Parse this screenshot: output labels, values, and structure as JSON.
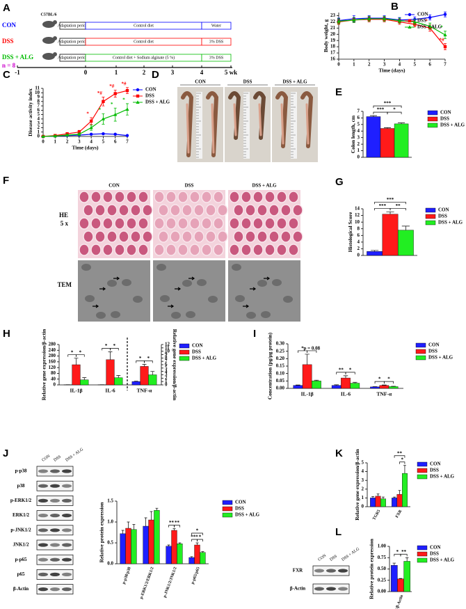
{
  "panel_labels": [
    "A",
    "B",
    "C",
    "D",
    "E",
    "F",
    "G",
    "H",
    "I",
    "J",
    "K",
    "L"
  ],
  "design": {
    "strain": "C57BL/6",
    "n": "n = 8",
    "n_color": "#cc00cc",
    "groups": [
      {
        "name": "CON",
        "color": "#0000ff",
        "periods": [
          "Adaptation period",
          "Control diet",
          "Water"
        ]
      },
      {
        "name": "DSS",
        "color": "#ff0000",
        "periods": [
          "Adaptation period",
          "Control diet",
          "3% DSS"
        ]
      },
      {
        "name": "DSS + ALG",
        "color": "#00bb00",
        "periods": [
          "Adaptation period",
          "Control diet + Sodium alginate (5 %)",
          "3% DSS"
        ]
      }
    ],
    "timeline": [
      "-1",
      "0",
      "1",
      "2",
      "3",
      "4",
      "5 wk"
    ]
  },
  "colon_photo": {
    "groups": [
      "CON",
      "DSS",
      "DSS + ALG"
    ]
  },
  "histology": {
    "groups": [
      "CON",
      "DSS",
      "DSS + ALG"
    ],
    "rows": [
      {
        "label": "HE",
        "sub": "5 x"
      },
      {
        "label": "TEM"
      }
    ]
  },
  "western_blot_j": {
    "lanes": [
      "CON",
      "DSS",
      "DSS + ALG"
    ],
    "rows": [
      "p-p38",
      "p38",
      "p-ERK1/2",
      "ERK1/2",
      "p-JNK1/2",
      "JNK1/2",
      "p-p65",
      "p65",
      "β-Actin"
    ]
  },
  "western_blot_l": {
    "lanes": [
      "CON",
      "DSS",
      "DSS + ALG"
    ],
    "rows": [
      "FXR",
      "β-Actin"
    ]
  },
  "chart_data": [
    {
      "type": "line",
      "ylabel": "Body weight, g",
      "xlabel": "Time (days)",
      "x": [
        0,
        1,
        2,
        3,
        4,
        5,
        6,
        7
      ],
      "xlim": [
        0,
        7
      ],
      "xticks": [
        0,
        1,
        2,
        3,
        4,
        5,
        6,
        7
      ],
      "ylim": [
        16,
        23.5
      ],
      "yticks": [
        16,
        17,
        18,
        19,
        20,
        21,
        22,
        23
      ],
      "legend": "upper right",
      "series": [
        {
          "name": "CON",
          "color": "#0000ff",
          "marker": "circle",
          "values": [
            22.2,
            22.5,
            22.6,
            22.6,
            22.3,
            22.4,
            22.7,
            23.2
          ],
          "errors": [
            0.4,
            0.5,
            0.4,
            0.4,
            0.4,
            0.4,
            0.4,
            0.4
          ]
        },
        {
          "name": "DSS",
          "color": "#ff0000",
          "marker": "square",
          "values": [
            22.0,
            22.3,
            22.4,
            22.4,
            22.0,
            21.6,
            21.0,
            18.0
          ],
          "errors": [
            0.4,
            0.4,
            0.4,
            0.4,
            0.4,
            0.4,
            0.5,
            0.5
          ],
          "significance": [
            null,
            null,
            null,
            null,
            null,
            null,
            "*",
            "*#"
          ]
        },
        {
          "name": "DSS + ALG",
          "color": "#00bb00",
          "marker": "triangle",
          "values": [
            22.1,
            22.3,
            22.5,
            22.5,
            22.2,
            22.0,
            21.3,
            19.9
          ],
          "errors": [
            0.4,
            0.4,
            0.4,
            0.4,
            0.4,
            0.4,
            0.5,
            0.6
          ],
          "significance": [
            null,
            null,
            null,
            null,
            null,
            null,
            null,
            "*"
          ]
        }
      ]
    },
    {
      "type": "line",
      "ylabel": "Disease activity index",
      "xlabel": "Time (days)",
      "x": [
        0,
        1,
        2,
        3,
        4,
        5,
        6,
        7
      ],
      "xlim": [
        0,
        7
      ],
      "xticks": [
        0,
        1,
        2,
        3,
        4,
        5,
        6,
        7
      ],
      "ylim": [
        0,
        11
      ],
      "yticks": [
        0,
        1,
        2,
        3,
        4,
        5,
        6,
        7,
        8,
        9,
        10,
        11
      ],
      "legend": "right",
      "series": [
        {
          "name": "CON",
          "color": "#0000ff",
          "marker": "circle",
          "values": [
            0,
            0.1,
            0.2,
            0.3,
            0.5,
            0.6,
            0.5,
            0.2
          ],
          "errors": [
            0,
            0.1,
            0.1,
            0.1,
            0.1,
            0.1,
            0.1,
            0.1
          ]
        },
        {
          "name": "DSS",
          "color": "#ff0000",
          "marker": "square",
          "values": [
            0,
            0.2,
            0.6,
            1.0,
            3.5,
            8.0,
            9.8,
            10.5
          ],
          "errors": [
            0,
            0.1,
            0.3,
            0.4,
            0.8,
            1.0,
            0.8,
            0.7
          ],
          "significance": [
            null,
            null,
            null,
            null,
            "*",
            "*#",
            "*#",
            "*#"
          ]
        },
        {
          "name": "DSS + ALG",
          "color": "#00bb00",
          "marker": "triangle",
          "values": [
            0,
            0.1,
            0.3,
            0.5,
            2.0,
            4.0,
            5.0,
            6.2
          ],
          "errors": [
            0,
            0.1,
            0.2,
            0.3,
            0.6,
            1.2,
            1.5,
            1.3
          ],
          "significance": [
            null,
            null,
            null,
            null,
            null,
            "*",
            "*",
            "*"
          ]
        }
      ]
    },
    {
      "type": "bar",
      "ylabel": "Colon length, cm",
      "ylim": [
        0,
        7
      ],
      "yticks": [
        0,
        1,
        2,
        3,
        4,
        5,
        6,
        7
      ],
      "legend": "right",
      "series": [
        {
          "name": "CON",
          "color": "#1f1fff",
          "values": [
            6.2
          ],
          "errors": [
            0.15
          ]
        },
        {
          "name": "DSS",
          "color": "#ff1a1a",
          "values": [
            4.4
          ],
          "errors": [
            0.12
          ]
        },
        {
          "name": "DSS + ALG",
          "color": "#22ee22",
          "values": [
            5.1
          ],
          "errors": [
            0.15
          ]
        }
      ],
      "comparisons": [
        {
          "groups": [
            0,
            1
          ],
          "label": "***"
        },
        {
          "groups": [
            1,
            2
          ],
          "label": "*"
        },
        {
          "groups": [
            0,
            2
          ],
          "label": "***"
        }
      ]
    },
    {
      "type": "bar",
      "ylabel": "Histological Score",
      "ylim": [
        0,
        14
      ],
      "yticks": [
        0,
        2,
        4,
        6,
        8,
        10,
        12,
        14
      ],
      "legend": "right",
      "series": [
        {
          "name": "CON",
          "color": "#1f1fff",
          "values": [
            1.2
          ],
          "errors": [
            0.3
          ]
        },
        {
          "name": "DSS",
          "color": "#ff1a1a",
          "values": [
            12.4
          ],
          "errors": [
            0.7
          ]
        },
        {
          "name": "DSS + ALG",
          "color": "#22ee22",
          "values": [
            7.6
          ],
          "errors": [
            1.2
          ]
        }
      ],
      "comparisons": [
        {
          "groups": [
            0,
            1
          ],
          "label": "***"
        },
        {
          "groups": [
            1,
            2
          ],
          "label": "**"
        },
        {
          "groups": [
            0,
            2
          ],
          "label": "***"
        }
      ]
    },
    {
      "type": "bar",
      "ylabel": "Relative gene expression/β-actin",
      "y2label": "Relative gene expression/β-actin",
      "categories": [
        "IL-1β",
        "IL-6",
        "TNF-α"
      ],
      "category_axis": [
        "y",
        "y",
        "y2"
      ],
      "ylim": [
        0,
        280
      ],
      "yticks": [
        0,
        40,
        80,
        120,
        160,
        200,
        240,
        280
      ],
      "y2lim": [
        0,
        12
      ],
      "y2ticks": [
        0,
        1,
        2,
        3,
        4,
        5,
        6,
        7,
        8,
        9,
        10,
        11,
        12
      ],
      "legend": "right",
      "series": [
        {
          "name": "CON",
          "color": "#1f1fff",
          "values": [
            1,
            1,
            1.0
          ],
          "errors": [
            0.5,
            0.5,
            0.1
          ]
        },
        {
          "name": "DSS",
          "color": "#ff1a1a",
          "values": [
            140,
            175,
            5.5
          ],
          "errors": [
            45,
            55,
            0.6
          ]
        },
        {
          "name": "DSS + ALG",
          "color": "#22ee22",
          "values": [
            35,
            50,
            3.0
          ],
          "errors": [
            15,
            15,
            1.0
          ]
        }
      ],
      "comparisons": [
        {
          "category": 0,
          "groups": [
            0,
            1
          ],
          "label": "*"
        },
        {
          "category": 0,
          "groups": [
            1,
            2
          ],
          "label": "*"
        },
        {
          "category": 1,
          "groups": [
            0,
            1
          ],
          "label": "*"
        },
        {
          "category": 1,
          "groups": [
            1,
            2
          ],
          "label": "*"
        },
        {
          "category": 2,
          "groups": [
            0,
            1
          ],
          "label": "*"
        },
        {
          "category": 2,
          "groups": [
            1,
            2
          ],
          "label": "*"
        }
      ]
    },
    {
      "type": "bar",
      "ylabel": "Concentration (pg/μg protein)",
      "categories": [
        "IL-1β",
        "IL-6",
        "TNF-α"
      ],
      "ylim": [
        0,
        0.3
      ],
      "yticks": [
        {
          "value": 0,
          "label": "0.00"
        },
        {
          "value": 0.05,
          "label": "0.05"
        },
        {
          "value": 0.1,
          "label": "0.10"
        },
        {
          "value": 0.15,
          "label": "0.15"
        },
        {
          "value": 0.2,
          "label": "0.20"
        },
        {
          "value": 0.25,
          "label": "0.25"
        },
        {
          "value": 0.3,
          "label": "0.30"
        }
      ],
      "legend": "right",
      "series": [
        {
          "name": "CON",
          "color": "#1f1fff",
          "values": [
            0.02,
            0.02,
            0.01
          ],
          "errors": [
            0.003,
            0.004,
            0.002
          ]
        },
        {
          "name": "DSS",
          "color": "#ff1a1a",
          "values": [
            0.16,
            0.07,
            0.02
          ],
          "errors": [
            0.07,
            0.015,
            0.003
          ]
        },
        {
          "name": "DSS + ALG",
          "color": "#22ee22",
          "values": [
            0.05,
            0.035,
            0.012
          ],
          "errors": [
            0.005,
            0.006,
            0.002
          ]
        }
      ],
      "comparisons": [
        {
          "category": 0,
          "groups": [
            0,
            1
          ],
          "label": "*"
        },
        {
          "category": 0,
          "groups": [
            1,
            2
          ],
          "label": "p = 0.08"
        },
        {
          "category": 1,
          "groups": [
            0,
            1
          ],
          "label": "**"
        },
        {
          "category": 1,
          "groups": [
            1,
            2
          ],
          "label": "*"
        },
        {
          "category": 2,
          "groups": [
            0,
            1
          ],
          "label": "*"
        },
        {
          "category": 2,
          "groups": [
            1,
            2
          ],
          "label": "*"
        }
      ]
    },
    {
      "type": "bar",
      "ylabel": "Relative protein expression",
      "categories": [
        "p-p38/p38",
        "p-ERK1/2/ERK1/2",
        "p-JNK1/2/JNK1/2",
        "p-p65/p65"
      ],
      "ylim": [
        0,
        1.5
      ],
      "yticks": [
        {
          "value": 0,
          "label": "0.0"
        },
        {
          "value": 0.5,
          "label": "0.5"
        },
        {
          "value": 1,
          "label": "1.0"
        },
        {
          "value": 1.5,
          "label": "1.5"
        }
      ],
      "legend": "right",
      "series": [
        {
          "name": "CON",
          "color": "#1f1fff",
          "values": [
            0.72,
            0.9,
            0.42,
            0.15
          ],
          "errors": [
            0.08,
            0.2,
            0.03,
            0.02
          ]
        },
        {
          "name": "DSS",
          "color": "#ff1a1a",
          "values": [
            0.85,
            1.05,
            0.8,
            0.45
          ],
          "errors": [
            0.15,
            0.2,
            0.04,
            0.05
          ]
        },
        {
          "name": "DSS + ALG",
          "color": "#22ee22",
          "values": [
            0.82,
            1.28,
            0.48,
            0.27
          ],
          "errors": [
            0.12,
            0.05,
            0.02,
            0.02
          ]
        }
      ],
      "comparisons": [
        {
          "category": 2,
          "groups": [
            0,
            1
          ],
          "label": "**"
        },
        {
          "category": 2,
          "groups": [
            1,
            2
          ],
          "label": "**"
        },
        {
          "category": 3,
          "groups": [
            0,
            1
          ],
          "label": "***"
        },
        {
          "category": 3,
          "groups": [
            1,
            2
          ],
          "label": "*"
        },
        {
          "category": 3,
          "groups": [
            0,
            2
          ],
          "label": "*"
        }
      ]
    },
    {
      "type": "bar",
      "ylabel": "Relative gene expression/β-actin",
      "categories": [
        "TGR5",
        "FXR"
      ],
      "ylim": [
        0,
        5
      ],
      "yticks": [
        0,
        1,
        2,
        3,
        4,
        5
      ],
      "legend": "right",
      "series": [
        {
          "name": "CON",
          "color": "#1f1fff",
          "values": [
            1.0,
            1.0
          ],
          "errors": [
            0.15,
            0.1
          ]
        },
        {
          "name": "DSS",
          "color": "#ff1a1a",
          "values": [
            1.2,
            1.4
          ],
          "errors": [
            0.25,
            0.45
          ]
        },
        {
          "name": "DSS + ALG",
          "color": "#22ee22",
          "values": [
            0.9,
            3.8
          ],
          "errors": [
            0.2,
            0.9
          ]
        }
      ],
      "comparisons": [
        {
          "category": 1,
          "groups": [
            1,
            2
          ],
          "label": "*"
        },
        {
          "category": 1,
          "groups": [
            0,
            2
          ],
          "label": "**"
        }
      ]
    },
    {
      "type": "bar",
      "ylabel": "Relative protein expression",
      "categories": [
        "FXR/β-Actin"
      ],
      "ylim": [
        0,
        1
      ],
      "yticks": [
        {
          "value": 0,
          "label": "0.00"
        },
        {
          "value": 0.25,
          "label": "0.25"
        },
        {
          "value": 0.5,
          "label": "0.50"
        },
        {
          "value": 0.75,
          "label": "0.75"
        },
        {
          "value": 1,
          "label": "1.00"
        }
      ],
      "legend": "right",
      "series": [
        {
          "name": "CON",
          "color": "#1f1fff",
          "values": [
            0.58
          ],
          "errors": [
            0.05
          ]
        },
        {
          "name": "DSS",
          "color": "#ff1a1a",
          "values": [
            0.28
          ],
          "errors": [
            0.01
          ]
        },
        {
          "name": "DSS + ALG",
          "color": "#22ee22",
          "values": [
            0.67
          ],
          "errors": [
            0.08
          ]
        }
      ],
      "comparisons": [
        {
          "category": 0,
          "groups": [
            0,
            1
          ],
          "label": "*"
        },
        {
          "category": 0,
          "groups": [
            1,
            2
          ],
          "label": "**"
        }
      ]
    }
  ]
}
